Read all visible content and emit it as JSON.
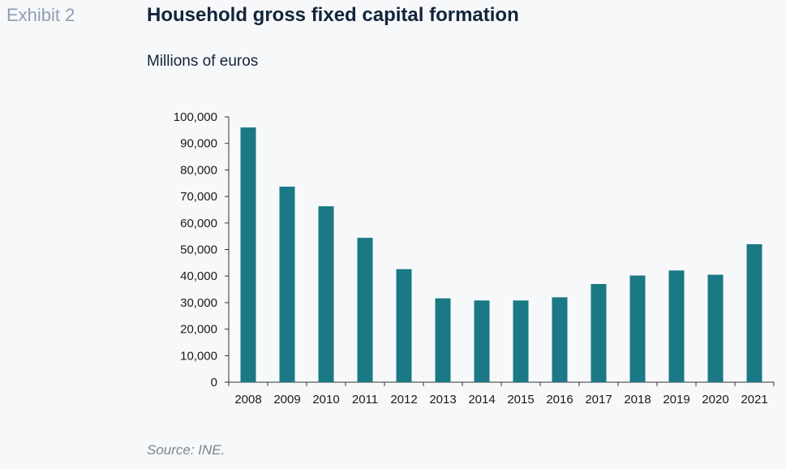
{
  "header": {
    "exhibit_label": "Exhibit 2",
    "title": "Household gross fixed capital formation",
    "subtitle": "Millions of euros"
  },
  "footer": {
    "source": "Source: INE."
  },
  "colors": {
    "bar": "#1b7885",
    "axis": "#333333",
    "exhibit": "#8e9fb4",
    "title": "#13243a"
  },
  "chart_data": {
    "type": "bar",
    "title": "Household gross fixed capital formation",
    "ylabel": "Millions of euros",
    "xlabel": "",
    "ylim": [
      0,
      100000
    ],
    "yticks": [
      0,
      10000,
      20000,
      30000,
      40000,
      50000,
      60000,
      70000,
      80000,
      90000,
      100000
    ],
    "ytick_labels": [
      "0",
      "10,000",
      "20,000",
      "30,000",
      "40,000",
      "50,000",
      "60,000",
      "70,000",
      "80,000",
      "90,000",
      "100,000"
    ],
    "categories": [
      "2008",
      "2009",
      "2010",
      "2011",
      "2012",
      "2013",
      "2014",
      "2015",
      "2016",
      "2017",
      "2018",
      "2019",
      "2020",
      "2021"
    ],
    "values": [
      96000,
      73700,
      66300,
      54400,
      42600,
      31600,
      30800,
      30800,
      32000,
      37000,
      40200,
      42100,
      40500,
      52000
    ],
    "grid": false,
    "legend": "none"
  }
}
